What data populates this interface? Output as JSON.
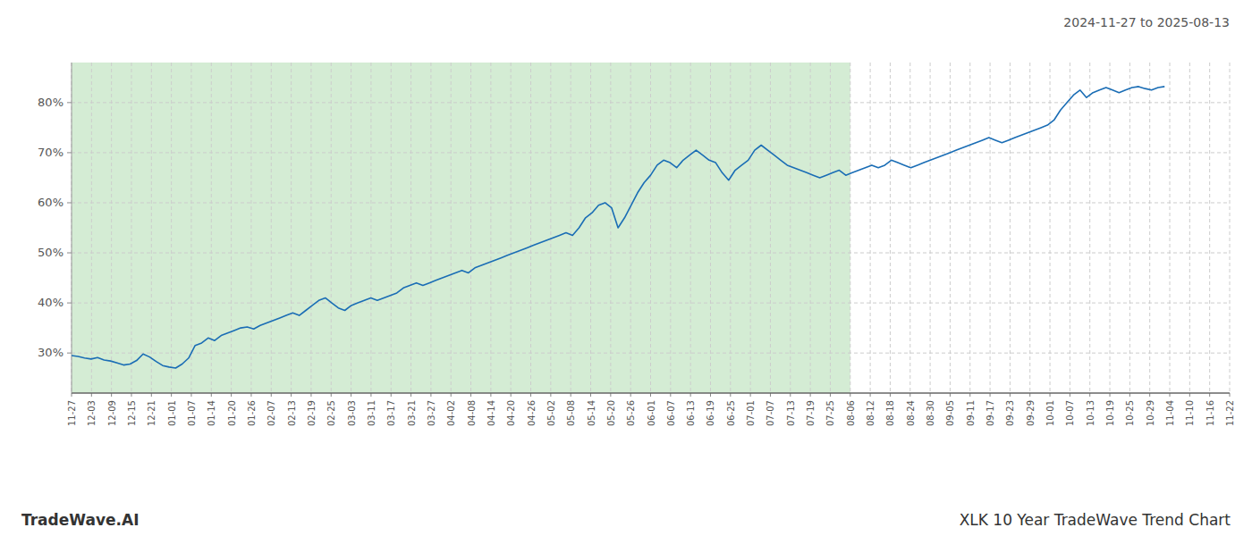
{
  "chart_data": {
    "type": "line",
    "title": "XLK 10 Year TradeWave Trend Chart",
    "subtitle": "2024-11-27 to 2025-08-13",
    "annotations": [
      "TradeWave.AI"
    ],
    "color": "#1a6db5",
    "grid": true,
    "highlight": {
      "x": [
        0,
        119.6897
      ],
      "color": "#d4ecd4"
    },
    "xlim": [
      0,
      178
    ],
    "xticks": [
      {
        "value": 0,
        "label": "11-27"
      },
      {
        "value": 3.069,
        "label": "12-03"
      },
      {
        "value": 6.1379,
        "label": "12-09"
      },
      {
        "value": 9.2069,
        "label": "12-15"
      },
      {
        "value": 12.2759,
        "label": "12-21"
      },
      {
        "value": 15.3448,
        "label": "01-01"
      },
      {
        "value": 18.4138,
        "label": "01-07"
      },
      {
        "value": 21.4828,
        "label": "01-14"
      },
      {
        "value": 24.5517,
        "label": "01-20"
      },
      {
        "value": 27.6207,
        "label": "01-26"
      },
      {
        "value": 30.6897,
        "label": "02-07"
      },
      {
        "value": 33.7586,
        "label": "02-13"
      },
      {
        "value": 36.8276,
        "label": "02-19"
      },
      {
        "value": 39.8966,
        "label": "02-25"
      },
      {
        "value": 42.9655,
        "label": "03-03"
      },
      {
        "value": 46.0345,
        "label": "03-11"
      },
      {
        "value": 49.1034,
        "label": "03-17"
      },
      {
        "value": 52.1724,
        "label": "03-21"
      },
      {
        "value": 55.2414,
        "label": "03-27"
      },
      {
        "value": 58.3103,
        "label": "04-02"
      },
      {
        "value": 61.3793,
        "label": "04-08"
      },
      {
        "value": 64.4483,
        "label": "04-14"
      },
      {
        "value": 67.5172,
        "label": "04-20"
      },
      {
        "value": 70.5862,
        "label": "04-26"
      },
      {
        "value": 73.6552,
        "label": "05-02"
      },
      {
        "value": 76.7241,
        "label": "05-08"
      },
      {
        "value": 79.7931,
        "label": "05-14"
      },
      {
        "value": 82.8621,
        "label": "05-20"
      },
      {
        "value": 85.931,
        "label": "05-26"
      },
      {
        "value": 89,
        "label": "06-01"
      },
      {
        "value": 92.069,
        "label": "06-07"
      },
      {
        "value": 95.1379,
        "label": "06-13"
      },
      {
        "value": 98.2069,
        "label": "06-19"
      },
      {
        "value": 101.2759,
        "label": "06-25"
      },
      {
        "value": 104.3448,
        "label": "07-01"
      },
      {
        "value": 107.4138,
        "label": "07-07"
      },
      {
        "value": 110.4828,
        "label": "07-13"
      },
      {
        "value": 113.5517,
        "label": "07-19"
      },
      {
        "value": 116.6207,
        "label": "07-25"
      },
      {
        "value": 119.6897,
        "label": "08-06"
      },
      {
        "value": 122.7586,
        "label": "08-12"
      },
      {
        "value": 125.8276,
        "label": "08-18"
      },
      {
        "value": 128.8966,
        "label": "08-24"
      },
      {
        "value": 131.9655,
        "label": "08-30"
      },
      {
        "value": 135.0345,
        "label": "09-05"
      },
      {
        "value": 138.1034,
        "label": "09-11"
      },
      {
        "value": 141.1724,
        "label": "09-17"
      },
      {
        "value": 144.2414,
        "label": "09-23"
      },
      {
        "value": 147.3103,
        "label": "09-29"
      },
      {
        "value": 150.3793,
        "label": "10-01"
      },
      {
        "value": 153.4483,
        "label": "10-07"
      },
      {
        "value": 156.5172,
        "label": "10-13"
      },
      {
        "value": 159.5862,
        "label": "10-19"
      },
      {
        "value": 162.6552,
        "label": "10-25"
      },
      {
        "value": 165.7241,
        "label": "10-29"
      },
      {
        "value": 168.7931,
        "label": "11-04"
      },
      {
        "value": 171.8621,
        "label": "11-10"
      },
      {
        "value": 174.931,
        "label": "11-16"
      },
      {
        "value": 178,
        "label": "11-22"
      }
    ],
    "ylim": [
      22,
      88
    ],
    "yticks": [
      {
        "value": 30,
        "label": "30%"
      },
      {
        "value": 40,
        "label": "40%"
      },
      {
        "value": 50,
        "label": "50%"
      },
      {
        "value": 60,
        "label": "60%"
      },
      {
        "value": 70,
        "label": "70%"
      },
      {
        "value": 80,
        "label": "80%"
      }
    ],
    "values": [
      29.5,
      29.3,
      29.0,
      28.8,
      29.1,
      28.6,
      28.4,
      28.0,
      27.6,
      27.8,
      28.5,
      29.8,
      29.2,
      28.3,
      27.5,
      27.2,
      27.0,
      27.8,
      29.0,
      31.5,
      32.0,
      33.0,
      32.5,
      33.5,
      34.0,
      34.5,
      35.0,
      35.2,
      34.8,
      35.5,
      36.0,
      36.5,
      37.0,
      37.5,
      38.0,
      37.5,
      38.5,
      39.5,
      40.5,
      41.0,
      40.0,
      39.0,
      38.5,
      39.5,
      40.0,
      40.5,
      41.0,
      40.5,
      41.0,
      41.5,
      42.0,
      43.0,
      43.5,
      44.0,
      43.5,
      44.0,
      44.5,
      45.0,
      45.5,
      46.0,
      46.5,
      46.0,
      47.0,
      47.5,
      48.0,
      48.5,
      49.0,
      49.5,
      50.0,
      50.5,
      51.0,
      51.5,
      52.0,
      52.5,
      53.0,
      53.5,
      54.0,
      53.5,
      55.0,
      57.0,
      58.0,
      59.5,
      60.0,
      59.0,
      55.0,
      57.0,
      59.5,
      62.0,
      64.0,
      65.5,
      67.5,
      68.5,
      68.0,
      67.0,
      68.5,
      69.5,
      70.5,
      69.5,
      68.5,
      68.0,
      66.0,
      64.5,
      66.5,
      67.5,
      68.5,
      70.5,
      71.5,
      70.5,
      69.5,
      68.5,
      67.5,
      67.0,
      66.5,
      66.0,
      65.5,
      65.0,
      65.5,
      66.0,
      66.5,
      65.5,
      66.0,
      66.5,
      67.0,
      67.5,
      67.0,
      67.5,
      68.5,
      68.0,
      67.5,
      67.0,
      67.5,
      68.0,
      68.5,
      69.0,
      69.5,
      70.0,
      70.5,
      71.0,
      71.5,
      72.0,
      72.5,
      73.0,
      72.5,
      72.0,
      72.5,
      73.0,
      73.5,
      74.0,
      74.5,
      75.0,
      75.5,
      76.5,
      78.5,
      80.0,
      81.5,
      82.5,
      81.0,
      82.0,
      82.5,
      83.0,
      82.5,
      82.0,
      82.5,
      83.0,
      83.2,
      82.8,
      82.5,
      83.0,
      83.2
    ]
  }
}
